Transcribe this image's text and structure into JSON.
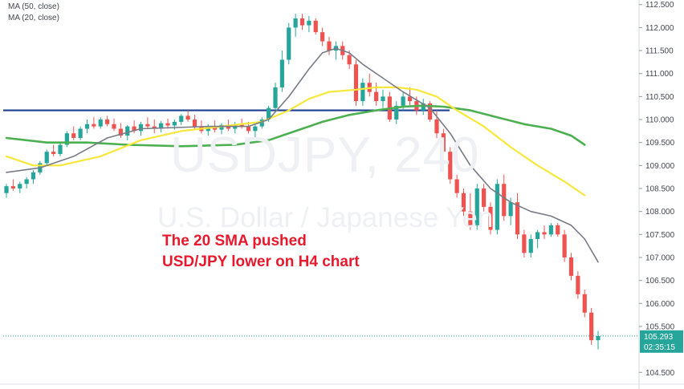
{
  "legend": {
    "ma50_label": "MA (50, close)",
    "ma20_label": "MA (20, close)"
  },
  "watermark": {
    "symbol": "USDJPY, 240",
    "name": "U.S. Dollar / Japanese Yen"
  },
  "annotation": {
    "line1": "The 20 SMA pushed",
    "line2": "USD/JPY lower on H4 chart"
  },
  "price_axis": {
    "ticks": [
      "112.500",
      "112.000",
      "111.500",
      "111.000",
      "110.500",
      "110.000",
      "109.500",
      "109.000",
      "108.500",
      "108.000",
      "107.500",
      "107.000",
      "106.500",
      "106.000",
      "105.500",
      "104.500"
    ],
    "last_price": "105.293",
    "countdown": "02:35:15"
  },
  "colors": {
    "up": "#26a69a",
    "down": "#ef5350",
    "ma20": "#787b86",
    "ma50": "#f7e73a",
    "ma100": "#4caf50",
    "level": "#1e3f8f",
    "price_tag": "#26a69a"
  },
  "chart_data": {
    "type": "candlestick",
    "symbol": "USDJPY",
    "timeframe": "240",
    "ylim": [
      104.4,
      112.6
    ],
    "horizontal_level": 110.2,
    "last_price": 105.293,
    "candles": [
      [
        108.4,
        108.6,
        108.3,
        108.55
      ],
      [
        108.55,
        108.7,
        108.45,
        108.5
      ],
      [
        108.5,
        108.65,
        108.4,
        108.6
      ],
      [
        108.6,
        108.75,
        108.5,
        108.7
      ],
      [
        108.7,
        108.9,
        108.6,
        108.85
      ],
      [
        108.85,
        109.1,
        108.8,
        109.05
      ],
      [
        109.05,
        109.35,
        109.0,
        109.3
      ],
      [
        109.3,
        109.45,
        109.2,
        109.25
      ],
      [
        109.25,
        109.5,
        109.2,
        109.45
      ],
      [
        109.45,
        109.75,
        109.4,
        109.7
      ],
      [
        109.7,
        109.85,
        109.55,
        109.6
      ],
      [
        109.6,
        109.85,
        109.55,
        109.8
      ],
      [
        109.8,
        110.0,
        109.7,
        109.9
      ],
      [
        109.9,
        110.05,
        109.8,
        109.85
      ],
      [
        109.85,
        110.05,
        109.8,
        110.0
      ],
      [
        110.0,
        110.08,
        109.85,
        109.9
      ],
      [
        109.9,
        110.02,
        109.75,
        109.8
      ],
      [
        109.8,
        109.92,
        109.6,
        109.65
      ],
      [
        109.65,
        109.88,
        109.55,
        109.85
      ],
      [
        109.85,
        109.98,
        109.7,
        109.75
      ],
      [
        109.75,
        109.95,
        109.65,
        109.9
      ],
      [
        109.9,
        110.05,
        109.8,
        109.85
      ],
      [
        109.85,
        110.0,
        109.7,
        109.8
      ],
      [
        109.8,
        109.97,
        109.72,
        109.92
      ],
      [
        109.92,
        110.02,
        109.8,
        109.87
      ],
      [
        109.87,
        110.0,
        109.78,
        109.95
      ],
      [
        109.95,
        110.12,
        109.88,
        110.08
      ],
      [
        110.08,
        110.2,
        109.95,
        110.0
      ],
      [
        110.0,
        110.1,
        109.8,
        109.85
      ],
      [
        109.85,
        109.98,
        109.7,
        109.75
      ],
      [
        109.75,
        109.9,
        109.65,
        109.85
      ],
      [
        109.85,
        109.98,
        109.72,
        109.78
      ],
      [
        109.78,
        109.92,
        109.68,
        109.88
      ],
      [
        109.88,
        110.0,
        109.75,
        109.8
      ],
      [
        109.8,
        109.95,
        109.7,
        109.9
      ],
      [
        109.9,
        110.02,
        109.8,
        109.85
      ],
      [
        109.85,
        109.95,
        109.7,
        109.75
      ],
      [
        109.75,
        109.9,
        109.6,
        109.85
      ],
      [
        109.85,
        110.05,
        109.8,
        110.0
      ],
      [
        110.0,
        110.3,
        109.95,
        110.25
      ],
      [
        110.25,
        110.8,
        110.2,
        110.7
      ],
      [
        110.7,
        111.5,
        110.6,
        111.3
      ],
      [
        111.3,
        112.1,
        111.2,
        112.0
      ],
      [
        112.0,
        112.3,
        111.8,
        112.2
      ],
      [
        112.2,
        112.3,
        111.95,
        112.05
      ],
      [
        112.05,
        112.25,
        111.9,
        112.15
      ],
      [
        112.15,
        112.2,
        111.85,
        111.9
      ],
      [
        111.9,
        112.0,
        111.6,
        111.7
      ],
      [
        111.7,
        111.8,
        111.4,
        111.5
      ],
      [
        111.5,
        111.7,
        111.3,
        111.6
      ],
      [
        111.6,
        111.7,
        111.3,
        111.4
      ],
      [
        111.4,
        111.5,
        111.1,
        111.2
      ],
      [
        111.2,
        111.3,
        110.3,
        110.4
      ],
      [
        110.4,
        110.9,
        110.3,
        110.8
      ],
      [
        110.8,
        111.0,
        110.5,
        110.6
      ],
      [
        110.6,
        110.8,
        110.3,
        110.4
      ],
      [
        110.4,
        110.65,
        110.25,
        110.5
      ],
      [
        110.5,
        110.6,
        109.95,
        110.0
      ],
      [
        110.0,
        110.4,
        109.9,
        110.3
      ],
      [
        110.3,
        110.6,
        110.2,
        110.5
      ],
      [
        110.5,
        110.7,
        110.3,
        110.4
      ],
      [
        110.4,
        110.5,
        110.1,
        110.2
      ],
      [
        110.2,
        110.45,
        110.1,
        110.35
      ],
      [
        110.35,
        110.4,
        109.95,
        110.0
      ],
      [
        110.0,
        110.2,
        109.6,
        109.7
      ],
      [
        109.7,
        109.8,
        109.2,
        109.3
      ],
      [
        109.3,
        109.4,
        108.6,
        108.7
      ],
      [
        108.7,
        108.8,
        108.3,
        108.4
      ],
      [
        108.4,
        108.5,
        107.9,
        108.0
      ],
      [
        108.0,
        108.4,
        107.6,
        107.7
      ],
      [
        107.7,
        108.6,
        107.6,
        108.5
      ],
      [
        108.5,
        108.6,
        108.0,
        108.1
      ],
      [
        108.1,
        108.2,
        107.5,
        107.6
      ],
      [
        107.6,
        108.7,
        107.5,
        108.6
      ],
      [
        108.6,
        108.8,
        107.8,
        107.9
      ],
      [
        107.9,
        108.3,
        107.7,
        108.2
      ],
      [
        108.2,
        108.4,
        107.4,
        107.5
      ],
      [
        107.5,
        107.6,
        107.0,
        107.1
      ],
      [
        107.1,
        107.5,
        107.0,
        107.4
      ],
      [
        107.4,
        107.6,
        107.2,
        107.55
      ],
      [
        107.55,
        107.7,
        107.4,
        107.5
      ],
      [
        107.5,
        107.75,
        107.45,
        107.7
      ],
      [
        107.7,
        107.75,
        107.45,
        107.5
      ],
      [
        107.5,
        107.6,
        106.9,
        107.0
      ],
      [
        107.0,
        107.1,
        106.5,
        106.6
      ],
      [
        106.6,
        106.7,
        106.1,
        106.2
      ],
      [
        106.2,
        106.3,
        105.7,
        105.8
      ],
      [
        105.8,
        105.9,
        105.1,
        105.2
      ],
      [
        105.2,
        105.4,
        105.0,
        105.29
      ]
    ],
    "ma20": [
      [
        0,
        108.85
      ],
      [
        5,
        108.95
      ],
      [
        10,
        109.2
      ],
      [
        15,
        109.6
      ],
      [
        20,
        109.8
      ],
      [
        30,
        109.85
      ],
      [
        36,
        109.85
      ],
      [
        39,
        110.0
      ],
      [
        42,
        110.5
      ],
      [
        45,
        111.1
      ],
      [
        47,
        111.45
      ],
      [
        49,
        111.55
      ],
      [
        51,
        111.45
      ],
      [
        53,
        111.2
      ],
      [
        56,
        110.9
      ],
      [
        59,
        110.6
      ],
      [
        63,
        110.25
      ],
      [
        66,
        109.7
      ],
      [
        69,
        109.0
      ],
      [
        72,
        108.5
      ],
      [
        75,
        108.2
      ],
      [
        78,
        108.0
      ],
      [
        81,
        107.9
      ],
      [
        84,
        107.7
      ],
      [
        86,
        107.4
      ],
      [
        88,
        106.9
      ]
    ],
    "ma50": [
      [
        0,
        109.2
      ],
      [
        4,
        109.0
      ],
      [
        8,
        109.0
      ],
      [
        14,
        109.2
      ],
      [
        20,
        109.55
      ],
      [
        26,
        109.75
      ],
      [
        32,
        109.85
      ],
      [
        38,
        109.95
      ],
      [
        42,
        110.2
      ],
      [
        45,
        110.45
      ],
      [
        48,
        110.6
      ],
      [
        52,
        110.65
      ],
      [
        55,
        110.7
      ],
      [
        58,
        110.7
      ],
      [
        61,
        110.65
      ],
      [
        64,
        110.5
      ],
      [
        67,
        110.2
      ],
      [
        71,
        109.85
      ],
      [
        75,
        109.4
      ],
      [
        79,
        109.0
      ],
      [
        83,
        108.65
      ],
      [
        86,
        108.35
      ]
    ],
    "ma100": [
      [
        0,
        109.6
      ],
      [
        6,
        109.5
      ],
      [
        12,
        109.5
      ],
      [
        18,
        109.45
      ],
      [
        26,
        109.42
      ],
      [
        34,
        109.45
      ],
      [
        39,
        109.55
      ],
      [
        43,
        109.75
      ],
      [
        47,
        109.95
      ],
      [
        51,
        110.1
      ],
      [
        55,
        110.2
      ],
      [
        59,
        110.28
      ],
      [
        62,
        110.3
      ],
      [
        65,
        110.28
      ],
      [
        69,
        110.2
      ],
      [
        73,
        110.05
      ],
      [
        77,
        109.9
      ],
      [
        81,
        109.8
      ],
      [
        84,
        109.65
      ],
      [
        86,
        109.45
      ]
    ]
  }
}
